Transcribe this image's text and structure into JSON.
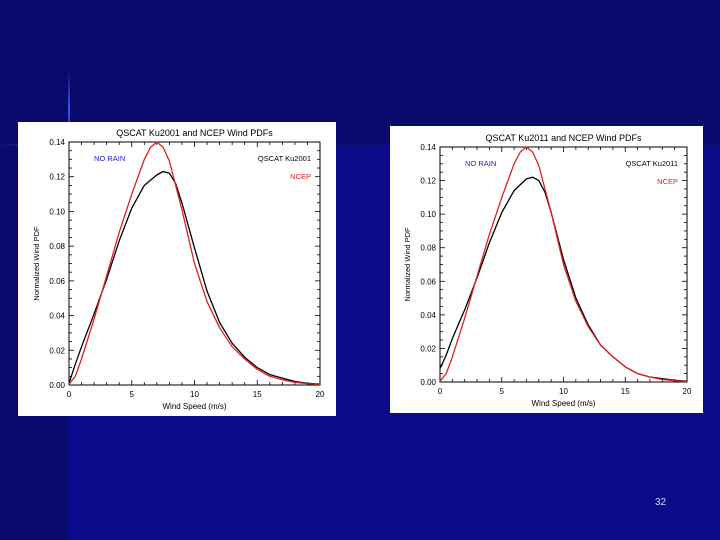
{
  "slide_number": "32",
  "colors": {
    "background": "#0c0c8a",
    "qscat": "#000000",
    "ncep": "#e02020",
    "no_rain_label": "#1a1ad0"
  },
  "chart_data": [
    {
      "type": "line",
      "title": "QSCAT Ku2001 and NCEP Wind PDFs",
      "xlabel": "Wind Speed (m/s)",
      "ylabel": "Normalized Wind PDF",
      "xlim": [
        0,
        20
      ],
      "ylim": [
        0,
        0.14
      ],
      "xticks": [
        0,
        5,
        10,
        15,
        20
      ],
      "yticks": [
        0.0,
        0.02,
        0.04,
        0.06,
        0.08,
        0.1,
        0.12,
        0.14
      ],
      "annotation": "NO RAIN",
      "legend_position": "top-right",
      "series": [
        {
          "name": "QSCAT Ku2001",
          "color": "#000000",
          "x": [
            0,
            0.5,
            1,
            2,
            3,
            4,
            5,
            6,
            7,
            7.5,
            8,
            8.5,
            9,
            10,
            11,
            12,
            13,
            14,
            15,
            16,
            17,
            18,
            19,
            20
          ],
          "y": [
            0.001,
            0.012,
            0.022,
            0.041,
            0.061,
            0.083,
            0.102,
            0.115,
            0.121,
            0.123,
            0.122,
            0.116,
            0.105,
            0.079,
            0.054,
            0.036,
            0.024,
            0.016,
            0.01,
            0.006,
            0.004,
            0.002,
            0.001,
            0.0005
          ]
        },
        {
          "name": "NCEP",
          "color": "#e02020",
          "x": [
            0,
            0.5,
            1,
            2,
            3,
            4,
            5,
            6,
            6.5,
            7,
            7.5,
            8,
            9,
            10,
            11,
            12,
            13,
            14,
            15,
            16,
            17,
            18,
            19,
            20
          ],
          "y": [
            0.0005,
            0.005,
            0.015,
            0.038,
            0.063,
            0.088,
            0.11,
            0.13,
            0.137,
            0.14,
            0.137,
            0.129,
            0.101,
            0.07,
            0.048,
            0.033,
            0.022,
            0.015,
            0.009,
            0.005,
            0.003,
            0.0015,
            0.0008,
            0.0003
          ]
        }
      ]
    },
    {
      "type": "line",
      "title": "QSCAT Ku2011 and NCEP Wind PDFs",
      "xlabel": "Wind Speed (m/s)",
      "ylabel": "Normalized Wind PDF",
      "xlim": [
        0,
        20
      ],
      "ylim": [
        0,
        0.14
      ],
      "xticks": [
        0,
        5,
        10,
        15,
        20
      ],
      "yticks": [
        0.0,
        0.02,
        0.04,
        0.06,
        0.08,
        0.1,
        0.12,
        0.14
      ],
      "annotation": "NO RAIN",
      "legend_position": "top-right",
      "series": [
        {
          "name": "QSCAT Ku2011",
          "color": "#000000",
          "x": [
            0,
            0.5,
            1,
            2,
            3,
            4,
            5,
            6,
            7,
            7.5,
            8,
            8.5,
            9,
            10,
            11,
            12,
            13,
            14,
            15,
            16,
            17,
            18,
            19,
            20
          ],
          "y": [
            0.008,
            0.016,
            0.026,
            0.043,
            0.062,
            0.083,
            0.101,
            0.114,
            0.121,
            0.122,
            0.12,
            0.113,
            0.101,
            0.073,
            0.05,
            0.034,
            0.022,
            0.015,
            0.009,
            0.005,
            0.003,
            0.002,
            0.001,
            0.0005
          ]
        },
        {
          "name": "NCEP",
          "color": "#e02020",
          "x": [
            0,
            0.5,
            1,
            2,
            3,
            4,
            5,
            6,
            6.5,
            7,
            7.5,
            8,
            9,
            10,
            11,
            12,
            13,
            14,
            15,
            16,
            17,
            18,
            19,
            20
          ],
          "y": [
            0.0005,
            0.005,
            0.015,
            0.038,
            0.063,
            0.088,
            0.11,
            0.13,
            0.137,
            0.14,
            0.137,
            0.129,
            0.101,
            0.07,
            0.048,
            0.033,
            0.022,
            0.015,
            0.009,
            0.005,
            0.003,
            0.0015,
            0.0008,
            0.0003
          ]
        }
      ]
    }
  ]
}
